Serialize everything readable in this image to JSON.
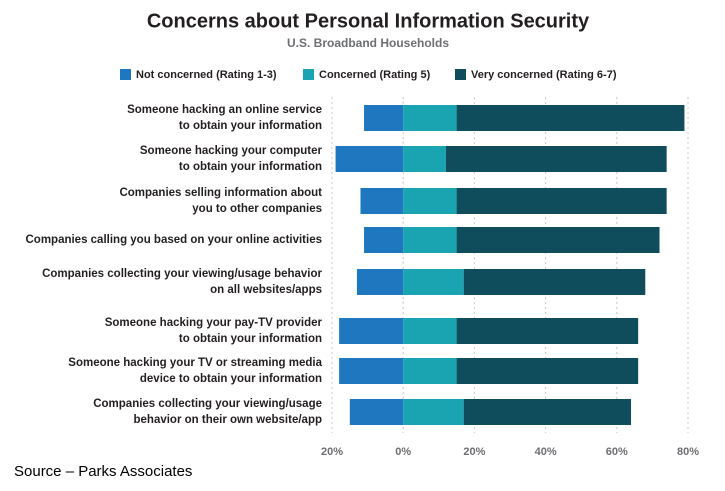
{
  "chart_data": {
    "type": "diverging-bar",
    "title": "Concerns about Personal Information Security",
    "subtitle": "U.S. Broadband Households",
    "source": "Source – Parks Associates",
    "categories": [
      [
        "Someone hacking an online service",
        "to obtain your information"
      ],
      [
        "Someone hacking your computer",
        "to obtain your information"
      ],
      [
        "Companies selling information about",
        "you to other companies"
      ],
      [
        "Companies calling you based on your online activities"
      ],
      [
        "Companies collecting your viewing/usage behavior",
        "on all websites/apps"
      ],
      [
        "Someone hacking your pay-TV provider",
        "to obtain your information"
      ],
      [
        "Someone hacking your TV or streaming media",
        "device to obtain your information"
      ],
      [
        "Companies collecting your viewing/usage",
        "behavior on their own website/app"
      ]
    ],
    "series": [
      {
        "name": "Not concerned (Rating 1-3)",
        "color": "#1f78bf",
        "values": [
          -11,
          -19,
          -12,
          -11,
          -13,
          -18,
          -18,
          -15
        ]
      },
      {
        "name": "Concerned (Rating 5)",
        "color": "#1aa3b0",
        "values": [
          15,
          12,
          15,
          15,
          17,
          15,
          15,
          17
        ]
      },
      {
        "name": "Very concerned (Rating 6-7)",
        "color": "#0f4c5c",
        "values": [
          64,
          62,
          59,
          57,
          51,
          51,
          51,
          47
        ]
      }
    ],
    "xlim": [
      -20,
      80
    ],
    "xticks": [
      {
        "value": -20,
        "label": "20%"
      },
      {
        "value": 0,
        "label": "0%"
      },
      {
        "value": 20,
        "label": "20%"
      },
      {
        "value": 40,
        "label": "40%"
      },
      {
        "value": 60,
        "label": "60%"
      },
      {
        "value": 80,
        "label": "80%"
      }
    ],
    "grid": true
  }
}
